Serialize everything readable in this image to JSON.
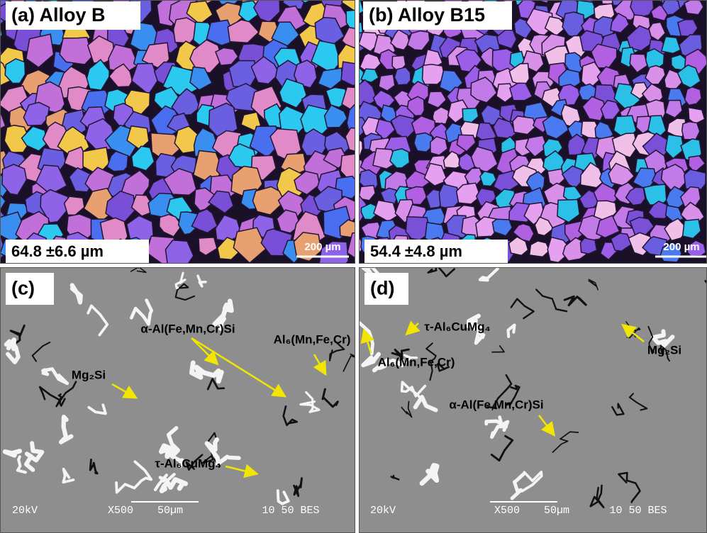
{
  "panels": [
    {
      "label": "(a) Alloy B",
      "grain_size": "64.8 ±6.6 µm",
      "scale_bar": "200 µm"
    },
    {
      "label": "(b) Alloy B15",
      "grain_size": "54.4 ±4.8 µm",
      "scale_bar": "200 µm"
    },
    {
      "label": "(c)",
      "annotations": [
        "α-Al(Fe,Mn,Cr)Si",
        "Al₆(Mn,Fe,Cr)",
        "Mg₂Si",
        "τ-Al₆CuMg₄"
      ],
      "sem_info": [
        "20kV",
        "X500",
        "50µm",
        "10 50 BES"
      ]
    },
    {
      "label": "(d)",
      "annotations": [
        "τ-Al₆CuMg₄",
        "Al₆(Mn,Fe,Cr)",
        "Mg₂Si",
        "α-Al(Fe,Mn,Cr)Si"
      ],
      "sem_info": [
        "20kV",
        "X500",
        "50µm",
        "10 50 BES"
      ]
    }
  ]
}
